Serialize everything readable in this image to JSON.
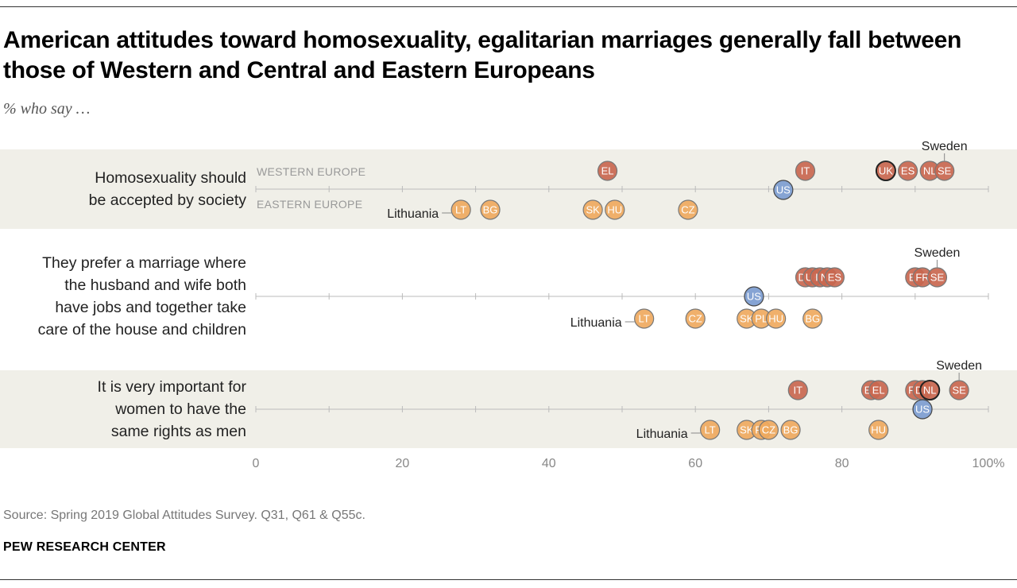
{
  "title": "American attitudes toward homosexuality, egalitarian marriages generally fall between those of Western and Central and Eastern Europeans",
  "subtitle": "% who say …",
  "source": "Source: Spring 2019 Global Attitudes Survey. Q31, Q61 & Q55c.",
  "credit": "PEW RESEARCH CENTER",
  "colors": {
    "western": "#c9674f",
    "eastern": "#efa95e",
    "us": "#7f9fd2",
    "band": "#f0efe8",
    "axis": "#bbbbbb"
  },
  "chart_data": {
    "type": "dot_plot",
    "xlim": [
      0,
      100
    ],
    "x_ticks": [
      0,
      20,
      40,
      60,
      80,
      100
    ],
    "x_tick_labels": [
      "0",
      "20",
      "40",
      "60",
      "80",
      "100%"
    ],
    "region_labels": {
      "western": "WESTERN EUROPE",
      "eastern": "EASTERN EUROPE"
    },
    "rows": [
      {
        "label_lines": [
          "Homosexuality should",
          "be accepted by society"
        ],
        "shaded": true,
        "western": [
          {
            "code": "EL",
            "value": 48
          },
          {
            "code": "IT",
            "value": 75
          },
          {
            "code": "UK",
            "value": 86,
            "highlight": true
          },
          {
            "code": "ES",
            "value": 89
          },
          {
            "code": "NL",
            "value": 92
          },
          {
            "code": "SE",
            "value": 94
          }
        ],
        "eastern": [
          {
            "code": "LT",
            "value": 28
          },
          {
            "code": "BG",
            "value": 32
          },
          {
            "code": "SK",
            "value": 46
          },
          {
            "code": "HU",
            "value": 49
          },
          {
            "code": "CZ",
            "value": 59
          }
        ],
        "us": 72,
        "callouts": [
          {
            "text": "Sweden",
            "series": "western",
            "code": "SE"
          },
          {
            "text": "Lithuania",
            "series": "eastern",
            "code": "LT"
          }
        ]
      },
      {
        "label_lines": [
          "They prefer a marriage where",
          "the husband and wife both",
          "have jobs and together take",
          "care of the house and children"
        ],
        "shaded": false,
        "western": [
          {
            "code": "DE",
            "value": 75
          },
          {
            "code": "UK",
            "value": 76
          },
          {
            "code": "IT",
            "value": 77
          },
          {
            "code": "NL",
            "value": 78
          },
          {
            "code": "ES",
            "value": 79
          },
          {
            "code": "EL",
            "value": 90
          },
          {
            "code": "FR",
            "value": 91
          },
          {
            "code": "SE",
            "value": 93
          }
        ],
        "eastern": [
          {
            "code": "LT",
            "value": 53
          },
          {
            "code": "CZ",
            "value": 60
          },
          {
            "code": "SK",
            "value": 67
          },
          {
            "code": "PL",
            "value": 69
          },
          {
            "code": "HU",
            "value": 71
          },
          {
            "code": "BG",
            "value": 76
          }
        ],
        "us": 68,
        "callouts": [
          {
            "text": "Sweden",
            "series": "western",
            "code": "SE"
          },
          {
            "text": "Lithuania",
            "series": "eastern",
            "code": "LT"
          }
        ]
      },
      {
        "label_lines": [
          "It is very important for",
          "women to have the",
          "same rights as men"
        ],
        "shaded": true,
        "western": [
          {
            "code": "IT",
            "value": 74
          },
          {
            "code": "ES",
            "value": 84
          },
          {
            "code": "EL",
            "value": 85
          },
          {
            "code": "FR",
            "value": 90
          },
          {
            "code": "DE",
            "value": 91
          },
          {
            "code": "NL",
            "value": 92,
            "highlight": true
          },
          {
            "code": "SE",
            "value": 96
          }
        ],
        "eastern": [
          {
            "code": "LT",
            "value": 62
          },
          {
            "code": "SK",
            "value": 67
          },
          {
            "code": "PL",
            "value": 69
          },
          {
            "code": "CZ",
            "value": 70
          },
          {
            "code": "BG",
            "value": 73
          },
          {
            "code": "HU",
            "value": 85
          }
        ],
        "us": 91,
        "callouts": [
          {
            "text": "Sweden",
            "series": "western",
            "code": "SE"
          },
          {
            "text": "Lithuania",
            "series": "eastern",
            "code": "LT"
          }
        ]
      }
    ]
  }
}
